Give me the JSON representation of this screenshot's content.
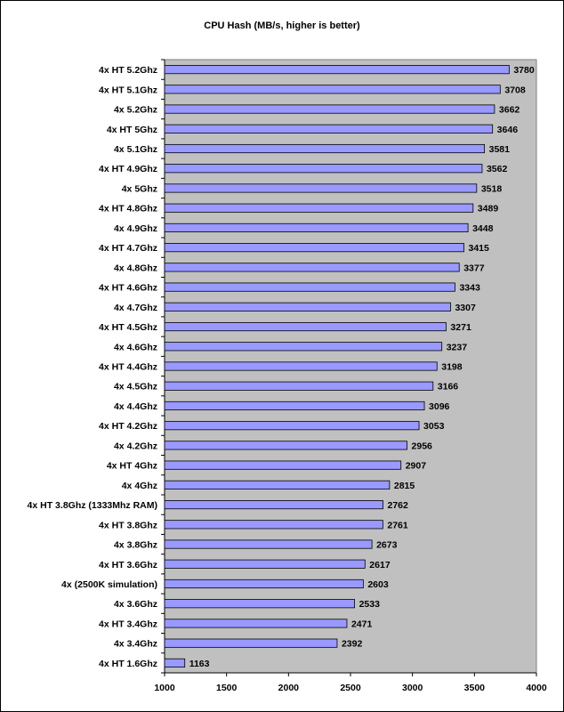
{
  "chart_data": {
    "type": "bar",
    "orientation": "horizontal",
    "title": "CPU Hash (MB/s, higher is better)",
    "xlabel": "",
    "ylabel": "",
    "xlim": [
      1000,
      4000
    ],
    "x_ticks": [
      1000,
      1500,
      2000,
      2500,
      3000,
      3500,
      4000
    ],
    "grid": false,
    "legend": "none",
    "colors": {
      "bar_fill": "#9999ff",
      "bar_stroke": "#000000",
      "plot_background": "#c0c0c0"
    },
    "categories": [
      "4x HT 5.2Ghz",
      "4x HT 5.1Ghz",
      "4x 5.2Ghz",
      "4x HT 5Ghz",
      "4x 5.1Ghz",
      "4x HT 4.9Ghz",
      "4x 5Ghz",
      "4x HT 4.8Ghz",
      "4x 4.9Ghz",
      "4x HT 4.7Ghz",
      "4x 4.8Ghz",
      "4x HT 4.6Ghz",
      "4x 4.7Ghz",
      "4x HT 4.5Ghz",
      "4x 4.6Ghz",
      "4x HT 4.4Ghz",
      "4x 4.5Ghz",
      "4x 4.4Ghz",
      "4x HT 4.2Ghz",
      "4x 4.2Ghz",
      "4x HT 4Ghz",
      "4x 4Ghz",
      "4x HT 3.8Ghz (1333Mhz RAM)",
      "4x HT 3.8Ghz",
      "4x 3.8Ghz",
      "4x HT 3.6Ghz",
      "4x (2500K simulation)",
      "4x 3.6Ghz",
      "4x HT 3.4Ghz",
      "4x 3.4Ghz",
      "4x HT 1.6Ghz"
    ],
    "values": [
      3780,
      3708,
      3662,
      3646,
      3581,
      3562,
      3518,
      3489,
      3448,
      3415,
      3377,
      3343,
      3307,
      3271,
      3237,
      3198,
      3166,
      3096,
      3053,
      2956,
      2907,
      2815,
      2762,
      2761,
      2673,
      2617,
      2603,
      2533,
      2471,
      2392,
      1163
    ]
  }
}
